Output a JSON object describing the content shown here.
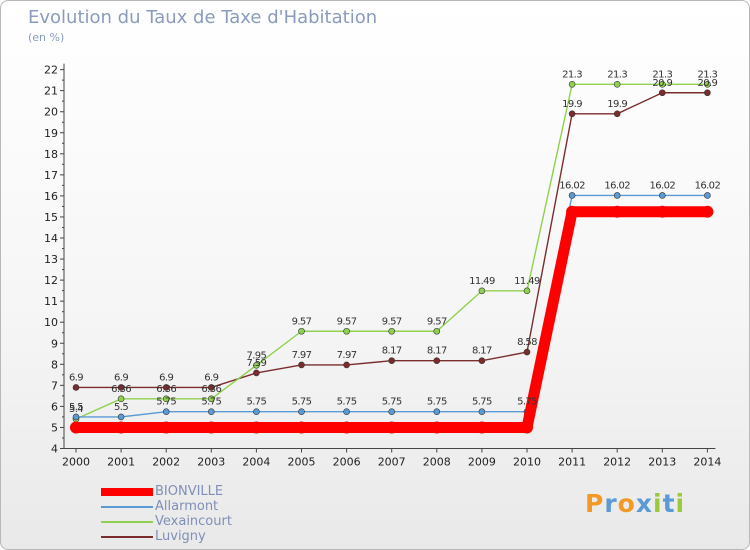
{
  "title": "Evolution du Taux de Taxe d'Habitation",
  "unit": "(en %)",
  "logo": {
    "text": "Proxiti",
    "colors": [
      "#f29a25",
      "#5b9bd5",
      "#f29a25",
      "#5b9bd5",
      "#9bc93a",
      "#5b9bd5",
      "#9bc93a"
    ]
  },
  "chart_data": {
    "type": "line",
    "x": [
      "2000",
      "2001",
      "2002",
      "2003",
      "2004",
      "2005",
      "2006",
      "2007",
      "2008",
      "2009",
      "2010",
      "2011",
      "2012",
      "2013",
      "2014"
    ],
    "ylim": [
      4,
      22
    ],
    "yticks": [
      4,
      5,
      6,
      7,
      8,
      9,
      10,
      11,
      12,
      13,
      14,
      15,
      16,
      17,
      18,
      19,
      20,
      21,
      22
    ],
    "grid": false,
    "legend_position": "bottom-left",
    "series": [
      {
        "name": "BIONVILLE",
        "color": "#ff0000",
        "values": [
          5,
          5,
          5,
          5,
          5,
          5,
          5,
          5,
          5,
          5,
          5,
          15.25,
          15.25,
          15.25,
          15.25
        ],
        "labels": []
      },
      {
        "name": "Allarmont",
        "color": "#5b9bd5",
        "values": [
          5.5,
          5.5,
          5.75,
          5.75,
          5.75,
          5.75,
          5.75,
          5.75,
          5.75,
          5.75,
          5.75,
          16.02,
          16.02,
          16.02,
          16.02
        ],
        "labels": [
          "5.5",
          "5.5",
          "5.75",
          "5.75",
          "5.75",
          "5.75",
          "5.75",
          "5.75",
          "5.75",
          "5.75",
          "5.75",
          "16.02",
          "16.02",
          "16.02",
          "16.02"
        ]
      },
      {
        "name": "Vexaincourt",
        "color": "#8fd14f",
        "values": [
          5.4,
          6.36,
          6.36,
          6.36,
          7.95,
          9.57,
          9.57,
          9.57,
          9.57,
          11.49,
          11.49,
          21.3,
          21.3,
          21.3,
          21.3
        ],
        "labels": [
          "5.4",
          "6.36",
          "6.36",
          "6.36",
          "7.95",
          "9.57",
          "9.57",
          "9.57",
          "9.57",
          "11.49",
          "11.49",
          "21.3",
          "21.3",
          "21.3",
          "21.3"
        ]
      },
      {
        "name": "Luvigny",
        "color": "#7b2d2d",
        "values": [
          6.9,
          6.9,
          6.9,
          6.9,
          7.59,
          7.97,
          7.97,
          8.17,
          8.17,
          8.17,
          8.58,
          19.9,
          19.9,
          20.9,
          20.9
        ],
        "labels": [
          "6.9",
          "6.9",
          "6.9",
          "6.9",
          "7.59",
          "7.97",
          "7.97",
          "8.17",
          "8.17",
          "8.17",
          "8.58",
          "19.9",
          "19.9",
          "20.9",
          "20.9"
        ]
      }
    ]
  }
}
